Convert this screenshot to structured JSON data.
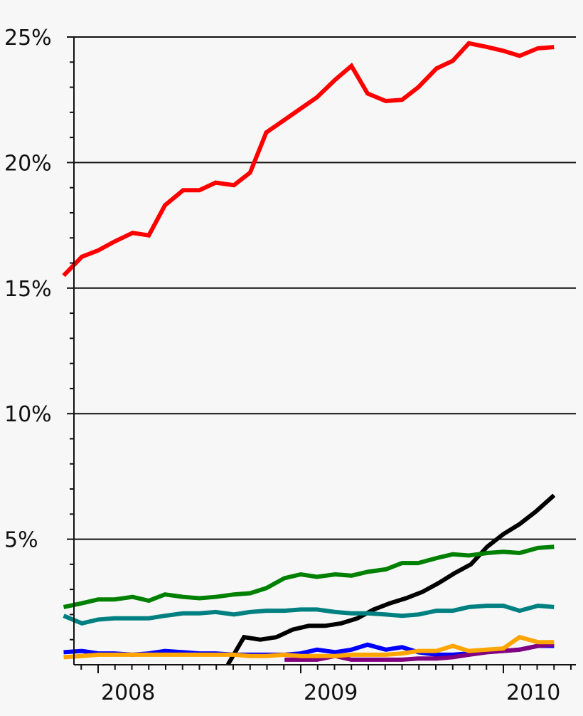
{
  "chart_data": {
    "type": "line",
    "title": "",
    "xlabel": "",
    "ylabel": "",
    "xlim": [
      2007.83,
      2010.375
    ],
    "ylim": [
      0,
      25
    ],
    "grid": "horizontal",
    "y_ticks": [
      {
        "value": 5,
        "label": "5%"
      },
      {
        "value": 10,
        "label": "10%"
      },
      {
        "value": 15,
        "label": "15%"
      },
      {
        "value": 20,
        "label": "20%"
      },
      {
        "value": 25,
        "label": "25%"
      }
    ],
    "x_ticks": [
      {
        "value": 2008,
        "label": "2008"
      },
      {
        "value": 2009,
        "label": "2009"
      },
      {
        "value": 2010,
        "label": "2010"
      }
    ],
    "series": [
      {
        "color": "#ff0000",
        "points": [
          [
            2007.83,
            15.5
          ],
          [
            2007.92,
            16.25
          ],
          [
            2008.0,
            16.5
          ],
          [
            2008.08,
            16.85
          ],
          [
            2008.17,
            17.2
          ],
          [
            2008.25,
            17.1
          ],
          [
            2008.33,
            18.3
          ],
          [
            2008.42,
            18.9
          ],
          [
            2008.5,
            18.9
          ],
          [
            2008.58,
            19.2
          ],
          [
            2008.67,
            19.1
          ],
          [
            2008.75,
            19.6
          ],
          [
            2008.83,
            21.2
          ],
          [
            2008.92,
            21.7
          ],
          [
            2009.0,
            22.15
          ],
          [
            2009.08,
            22.6
          ],
          [
            2009.17,
            23.3
          ],
          [
            2009.25,
            23.85
          ],
          [
            2009.33,
            22.75
          ],
          [
            2009.42,
            22.45
          ],
          [
            2009.5,
            22.5
          ],
          [
            2009.58,
            23.0
          ],
          [
            2009.67,
            23.75
          ],
          [
            2009.75,
            24.05
          ],
          [
            2009.83,
            24.75
          ],
          [
            2009.92,
            24.6
          ],
          [
            2010.0,
            24.45
          ],
          [
            2010.08,
            24.25
          ],
          [
            2010.17,
            24.55
          ],
          [
            2010.25,
            24.6
          ]
        ]
      },
      {
        "color": "#000000",
        "points": [
          [
            2008.64,
            0
          ],
          [
            2008.72,
            1.1
          ],
          [
            2008.8,
            1.0
          ],
          [
            2008.88,
            1.1
          ],
          [
            2008.96,
            1.4
          ],
          [
            2009.04,
            1.55
          ],
          [
            2009.12,
            1.55
          ],
          [
            2009.2,
            1.65
          ],
          [
            2009.28,
            1.85
          ],
          [
            2009.36,
            2.2
          ],
          [
            2009.44,
            2.45
          ],
          [
            2009.52,
            2.65
          ],
          [
            2009.6,
            2.9
          ],
          [
            2009.68,
            3.25
          ],
          [
            2009.76,
            3.65
          ],
          [
            2009.84,
            4.0
          ],
          [
            2009.92,
            4.7
          ],
          [
            2010.0,
            5.2
          ],
          [
            2010.08,
            5.6
          ],
          [
            2010.16,
            6.1
          ],
          [
            2010.25,
            6.75
          ]
        ]
      },
      {
        "color": "#008000",
        "points": [
          [
            2007.83,
            2.3
          ],
          [
            2007.92,
            2.45
          ],
          [
            2008.0,
            2.6
          ],
          [
            2008.08,
            2.6
          ],
          [
            2008.17,
            2.7
          ],
          [
            2008.25,
            2.55
          ],
          [
            2008.33,
            2.8
          ],
          [
            2008.42,
            2.7
          ],
          [
            2008.5,
            2.65
          ],
          [
            2008.58,
            2.7
          ],
          [
            2008.67,
            2.8
          ],
          [
            2008.75,
            2.85
          ],
          [
            2008.83,
            3.05
          ],
          [
            2008.92,
            3.45
          ],
          [
            2009.0,
            3.6
          ],
          [
            2009.08,
            3.5
          ],
          [
            2009.17,
            3.6
          ],
          [
            2009.25,
            3.55
          ],
          [
            2009.33,
            3.7
          ],
          [
            2009.42,
            3.8
          ],
          [
            2009.5,
            4.05
          ],
          [
            2009.58,
            4.05
          ],
          [
            2009.67,
            4.25
          ],
          [
            2009.75,
            4.4
          ],
          [
            2009.83,
            4.35
          ],
          [
            2009.92,
            4.45
          ],
          [
            2010.0,
            4.5
          ],
          [
            2010.08,
            4.45
          ],
          [
            2010.17,
            4.65
          ],
          [
            2010.25,
            4.7
          ]
        ]
      },
      {
        "color": "#008080",
        "points": [
          [
            2007.83,
            1.95
          ],
          [
            2007.92,
            1.65
          ],
          [
            2008.0,
            1.8
          ],
          [
            2008.08,
            1.85
          ],
          [
            2008.17,
            1.85
          ],
          [
            2008.25,
            1.85
          ],
          [
            2008.33,
            1.95
          ],
          [
            2008.42,
            2.05
          ],
          [
            2008.5,
            2.05
          ],
          [
            2008.58,
            2.1
          ],
          [
            2008.67,
            2.0
          ],
          [
            2008.75,
            2.1
          ],
          [
            2008.83,
            2.15
          ],
          [
            2008.92,
            2.15
          ],
          [
            2009.0,
            2.2
          ],
          [
            2009.08,
            2.2
          ],
          [
            2009.17,
            2.1
          ],
          [
            2009.25,
            2.05
          ],
          [
            2009.33,
            2.05
          ],
          [
            2009.42,
            2.0
          ],
          [
            2009.5,
            1.95
          ],
          [
            2009.58,
            2.0
          ],
          [
            2009.67,
            2.15
          ],
          [
            2009.75,
            2.15
          ],
          [
            2009.83,
            2.3
          ],
          [
            2009.92,
            2.35
          ],
          [
            2010.0,
            2.35
          ],
          [
            2010.08,
            2.15
          ],
          [
            2010.17,
            2.35
          ],
          [
            2010.25,
            2.3
          ]
        ]
      },
      {
        "color": "#0000ff",
        "points": [
          [
            2007.83,
            0.5
          ],
          [
            2007.92,
            0.55
          ],
          [
            2008.0,
            0.45
          ],
          [
            2008.08,
            0.45
          ],
          [
            2008.17,
            0.4
          ],
          [
            2008.25,
            0.45
          ],
          [
            2008.33,
            0.55
          ],
          [
            2008.42,
            0.5
          ],
          [
            2008.5,
            0.45
          ],
          [
            2008.58,
            0.45
          ],
          [
            2008.67,
            0.4
          ],
          [
            2008.75,
            0.4
          ],
          [
            2008.83,
            0.4
          ],
          [
            2008.92,
            0.4
          ],
          [
            2009.0,
            0.45
          ],
          [
            2009.08,
            0.6
          ],
          [
            2009.17,
            0.5
          ],
          [
            2009.25,
            0.6
          ],
          [
            2009.33,
            0.8
          ],
          [
            2009.42,
            0.6
          ],
          [
            2009.5,
            0.7
          ],
          [
            2009.58,
            0.5
          ],
          [
            2009.67,
            0.4
          ],
          [
            2009.75,
            0.4
          ],
          [
            2009.83,
            0.45
          ],
          [
            2009.92,
            0.55
          ],
          [
            2010.0,
            0.55
          ],
          [
            2010.08,
            0.6
          ],
          [
            2010.17,
            0.75
          ],
          [
            2010.25,
            0.75
          ]
        ]
      },
      {
        "color": "#800080",
        "points": [
          [
            2008.92,
            0.2
          ],
          [
            2009.0,
            0.2
          ],
          [
            2009.08,
            0.2
          ],
          [
            2009.17,
            0.35
          ],
          [
            2009.25,
            0.2
          ],
          [
            2009.33,
            0.2
          ],
          [
            2009.42,
            0.2
          ],
          [
            2009.5,
            0.2
          ],
          [
            2009.58,
            0.25
          ],
          [
            2009.67,
            0.25
          ],
          [
            2009.75,
            0.3
          ],
          [
            2009.83,
            0.4
          ],
          [
            2009.92,
            0.5
          ],
          [
            2010.0,
            0.55
          ],
          [
            2010.08,
            0.6
          ],
          [
            2010.17,
            0.75
          ],
          [
            2010.25,
            0.8
          ]
        ]
      },
      {
        "color": "#ffa500",
        "points": [
          [
            2007.83,
            0.3
          ],
          [
            2007.92,
            0.35
          ],
          [
            2008.0,
            0.4
          ],
          [
            2008.08,
            0.4
          ],
          [
            2008.17,
            0.4
          ],
          [
            2008.25,
            0.4
          ],
          [
            2008.33,
            0.4
          ],
          [
            2008.42,
            0.4
          ],
          [
            2008.5,
            0.4
          ],
          [
            2008.58,
            0.4
          ],
          [
            2008.67,
            0.4
          ],
          [
            2008.75,
            0.35
          ],
          [
            2008.83,
            0.35
          ],
          [
            2008.92,
            0.4
          ],
          [
            2009.0,
            0.35
          ],
          [
            2009.08,
            0.35
          ],
          [
            2009.17,
            0.35
          ],
          [
            2009.25,
            0.4
          ],
          [
            2009.33,
            0.4
          ],
          [
            2009.42,
            0.4
          ],
          [
            2009.5,
            0.45
          ],
          [
            2009.58,
            0.55
          ],
          [
            2009.67,
            0.55
          ],
          [
            2009.75,
            0.75
          ],
          [
            2009.83,
            0.55
          ],
          [
            2009.92,
            0.6
          ],
          [
            2010.0,
            0.65
          ],
          [
            2010.08,
            1.1
          ],
          [
            2010.17,
            0.9
          ],
          [
            2010.25,
            0.9
          ]
        ]
      }
    ]
  }
}
